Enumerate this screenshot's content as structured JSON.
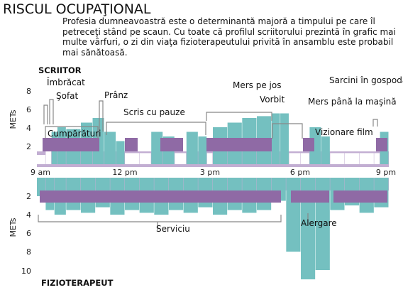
{
  "title": "RISCUL OCUPAŢIONAL",
  "description": "Profesia dumneavoastră este o determinantă majoră a timpului pe care îl petreceţi stând pe scaun. Cu toate că profilul scriitorului prezintă în grafic mai multe vârfuri, o zi din viaţa fizioterapeutului privită în ansamblu este probabil mai sănătoasă.",
  "colors": {
    "base": "#c2aed2",
    "mid": "#8f6aa5",
    "peak": "#74c0c0",
    "bracket": "#888888"
  },
  "chart_data": [
    {
      "type": "area",
      "panel_label": "SCRIITOR",
      "ylabel": "METs",
      "ylim": [
        0,
        9
      ],
      "yticks": [
        "2",
        "4",
        "6",
        "8"
      ],
      "xlim": [
        9,
        21
      ],
      "xticks": [
        "9 am",
        "12 pm",
        "3 pm",
        "6 pm",
        "9 pm"
      ],
      "x_hours": [
        9,
        9.3,
        9.5,
        9.7,
        10,
        10.5,
        10.9,
        11.3,
        11.7,
        12,
        12.5,
        12.9,
        13.3,
        13.7,
        14.1,
        14.5,
        14.8,
        15,
        15.5,
        16,
        16.5,
        17,
        17.3,
        17.6,
        18,
        18.3,
        18.7,
        19,
        19.5,
        20,
        20.5,
        20.7,
        21
      ],
      "series": [
        {
          "values": [
            1,
            1.5,
            3.5,
            4,
            3.8,
            4.5,
            5,
            3.5,
            2.5,
            1.2,
            1.2,
            3.5,
            3,
            1.2,
            3.5,
            3,
            1.2,
            4,
            4.5,
            5,
            5.2,
            5.5,
            5.5,
            1.2,
            1.2,
            4,
            3,
            1.2,
            1.2,
            1.2,
            1.2,
            3.5,
            1
          ]
        }
      ],
      "annotations": [
        "Îmbrăcat",
        "Şofat",
        "Cumpărături",
        "Prânz",
        "Scris cu pauze",
        "Mers pe jos",
        "Vorbit",
        "Mers până la maşină",
        "Sarcini în gospodărie",
        "Vizionare film"
      ]
    },
    {
      "type": "area",
      "panel_label": "FIZIOTERAPEUT",
      "ylabel": "METs",
      "ylim": [
        0,
        11
      ],
      "yticks": [
        "2",
        "4",
        "6",
        "8",
        "10"
      ],
      "xlim": [
        9,
        21
      ],
      "x_hours": [
        9,
        9.3,
        9.6,
        10,
        10.5,
        11,
        11.5,
        12,
        12.5,
        13,
        13.5,
        14,
        14.5,
        15,
        15.5,
        16,
        16.5,
        17,
        17.5,
        18,
        18.5,
        19,
        19.5,
        20,
        20.5,
        21
      ],
      "series": [
        {
          "values": [
            2,
            3.5,
            4,
            3.5,
            3.8,
            3.2,
            4,
            3.5,
            3.8,
            4,
            3.5,
            3.8,
            3.2,
            4,
            3.5,
            3.8,
            3.5,
            2.5,
            8,
            11,
            10,
            3.5,
            3,
            3.8,
            3.2,
            3
          ]
        }
      ],
      "annotations": [
        "Serviciu",
        "Alergare"
      ]
    }
  ]
}
